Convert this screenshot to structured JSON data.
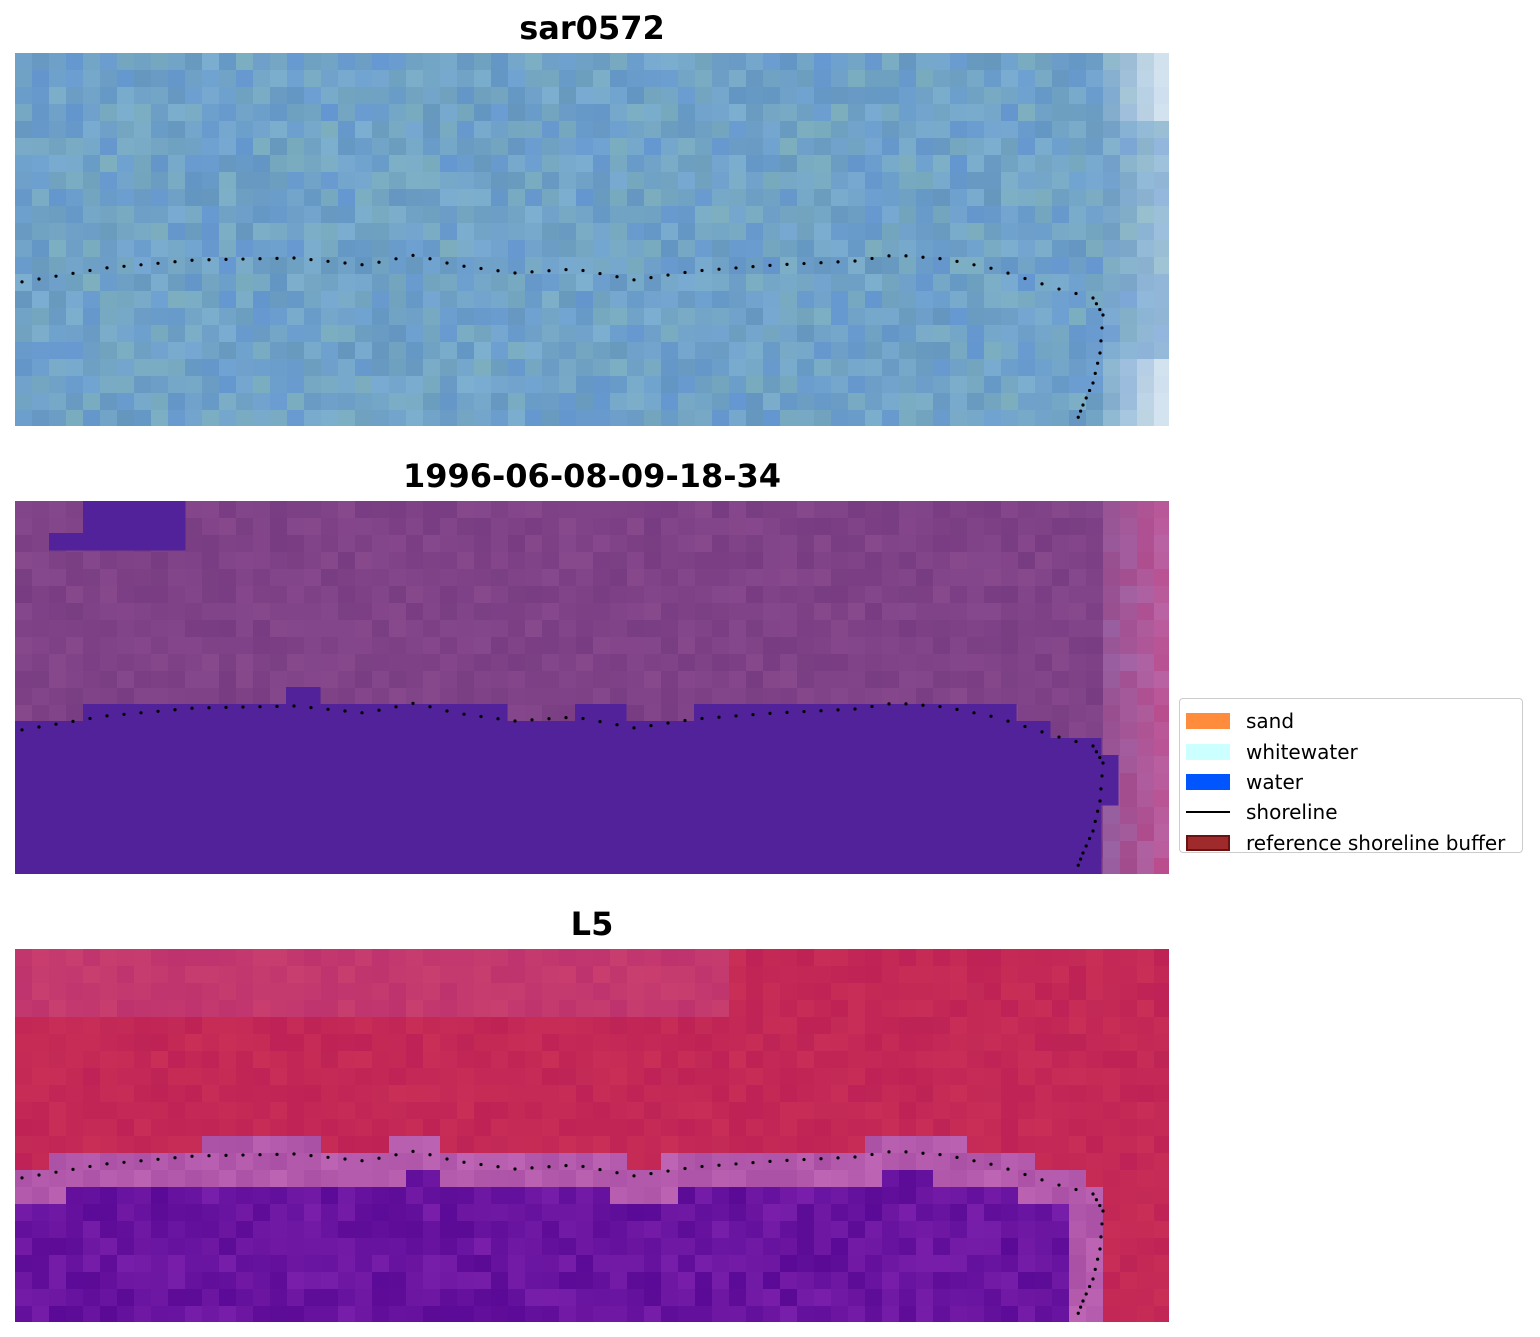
{
  "panels": [
    {
      "title": "sar0572",
      "style": "sar"
    },
    {
      "title": "1996-06-08-09-18-34",
      "style": "classified"
    },
    {
      "title": "L5",
      "style": "falsecolor"
    }
  ],
  "legend": {
    "items": [
      {
        "label": "sand",
        "color": "#ff8c3c",
        "kind": "patch"
      },
      {
        "label": "whitewater",
        "color": "#ccffff",
        "kind": "patch"
      },
      {
        "label": "water",
        "color": "#0055ff",
        "kind": "patch"
      },
      {
        "label": "shoreline",
        "color": "#000000",
        "kind": "line"
      },
      {
        "label": "reference shoreline buffer",
        "color": "#9e2a2b",
        "kind": "patch-edge",
        "edge": "#6b1111"
      }
    ]
  }
}
